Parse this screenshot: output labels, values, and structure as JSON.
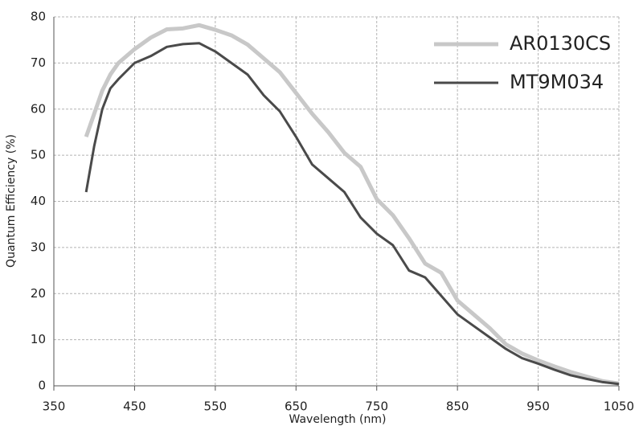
{
  "chart_data": {
    "type": "line",
    "xlabel": "Wavelength (nm)",
    "ylabel": "Quantum Efficiency (%)",
    "x": [
      390,
      400,
      410,
      420,
      430,
      450,
      470,
      490,
      510,
      530,
      550,
      570,
      590,
      610,
      630,
      650,
      670,
      690,
      710,
      730,
      750,
      770,
      790,
      810,
      830,
      850,
      870,
      890,
      910,
      930,
      950,
      970,
      990,
      1010,
      1030,
      1050
    ],
    "series": [
      {
        "name": "AR0130CS",
        "color": "#c8c8c8",
        "values": [
          54,
          59,
          64,
          67.5,
          70,
          73,
          75.5,
          77.3,
          77.5,
          78.2,
          77.2,
          76,
          74,
          71,
          68,
          63.5,
          59,
          55,
          50.5,
          47.5,
          40.5,
          37,
          32,
          26.5,
          24.5,
          18.5,
          15.5,
          12.5,
          9,
          7,
          5.5,
          4.2,
          3,
          2,
          1,
          0.5
        ]
      },
      {
        "name": "MT9M034",
        "color": "#4a4a4a",
        "values": [
          42,
          52,
          60,
          64.5,
          66.5,
          70,
          71.5,
          73.5,
          74.1,
          74.3,
          72.5,
          70,
          67.5,
          63,
          59.5,
          54,
          48,
          45,
          42,
          36.5,
          33,
          30.5,
          25,
          23.5,
          19.5,
          15.5,
          13,
          10.5,
          8,
          6,
          4.8,
          3.5,
          2.3,
          1.5,
          0.8,
          0.4
        ]
      }
    ],
    "xlim": [
      350,
      1050
    ],
    "xticks": [
      350,
      450,
      550,
      650,
      750,
      850,
      950,
      1050
    ],
    "ylim": [
      0,
      80
    ],
    "yticks": [
      0,
      10,
      20,
      30,
      40,
      50,
      60,
      70,
      80
    ],
    "grid": true,
    "legend": "top-right"
  }
}
